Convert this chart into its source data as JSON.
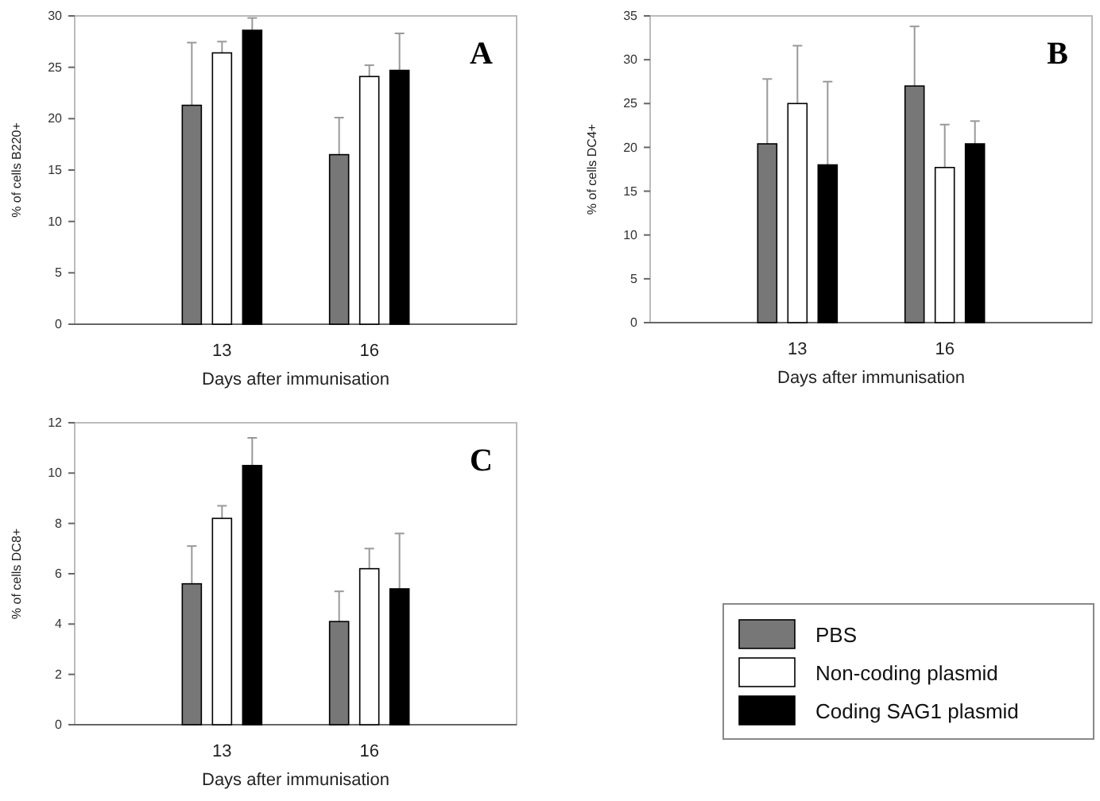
{
  "chart_data": [
    {
      "type": "bar",
      "title": "A",
      "xlabel": "Days after immunisation",
      "ylabel": "% of cells B220+",
      "categories": [
        "13",
        "16"
      ],
      "ylim": [
        0,
        30
      ],
      "yticks": [
        0,
        5,
        10,
        15,
        20,
        25,
        30
      ],
      "legend": "bottom right",
      "series": [
        {
          "name": "PBS",
          "color": "#777777",
          "values": [
            21.3,
            16.5
          ],
          "errors": [
            [
              21.3,
              27.4
            ],
            [
              16.5,
              20.1
            ]
          ]
        },
        {
          "name": "Non-coding plasmid",
          "color": "#ffffff",
          "values": [
            26.4,
            24.1
          ],
          "errors": [
            [
              26.4,
              27.5
            ],
            [
              24.1,
              25.2
            ]
          ]
        },
        {
          "name": "Coding SAG1 plasmid",
          "color": "#000000",
          "values": [
            28.6,
            24.7
          ],
          "errors": [
            [
              28.6,
              29.8
            ],
            [
              24.7,
              28.3
            ]
          ]
        }
      ]
    },
    {
      "type": "bar",
      "title": "B",
      "xlabel": "Days after immunisation",
      "ylabel": "% of cells DC4+",
      "categories": [
        "13",
        "16"
      ],
      "ylim": [
        0,
        35
      ],
      "yticks": [
        0,
        5,
        10,
        15,
        20,
        25,
        30,
        35
      ],
      "series": [
        {
          "color": "#777777",
          "values": [
            20.4,
            27.0
          ],
          "errors": [
            [
              20.4,
              27.8
            ],
            [
              27.0,
              33.8
            ]
          ]
        },
        {
          "color": "#ffffff",
          "values": [
            25.0,
            17.7
          ],
          "errors": [
            [
              25.0,
              31.6
            ],
            [
              17.7,
              22.6
            ]
          ]
        },
        {
          "color": "#000000",
          "values": [
            18.0,
            20.4
          ],
          "errors": [
            [
              18.0,
              27.5
            ],
            [
              20.4,
              23.0
            ]
          ]
        }
      ]
    },
    {
      "type": "bar",
      "title": "C",
      "xlabel": "Days after immunisation",
      "ylabel": "% of cells DC8+",
      "categories": [
        "13",
        "16"
      ],
      "ylim": [
        0,
        12
      ],
      "yticks": [
        0,
        2,
        4,
        6,
        8,
        10,
        12
      ],
      "series": [
        {
          "color": "#777777",
          "values": [
            5.6,
            4.1
          ],
          "errors": [
            [
              5.6,
              7.1
            ],
            [
              4.1,
              5.3
            ]
          ]
        },
        {
          "color": "#ffffff",
          "values": [
            8.2,
            6.2
          ],
          "errors": [
            [
              8.2,
              8.7
            ],
            [
              6.2,
              7.0
            ]
          ]
        },
        {
          "color": "#000000",
          "values": [
            10.3,
            5.4
          ],
          "errors": [
            [
              10.3,
              11.4
            ],
            [
              5.4,
              7.6
            ]
          ]
        }
      ]
    }
  ]
}
